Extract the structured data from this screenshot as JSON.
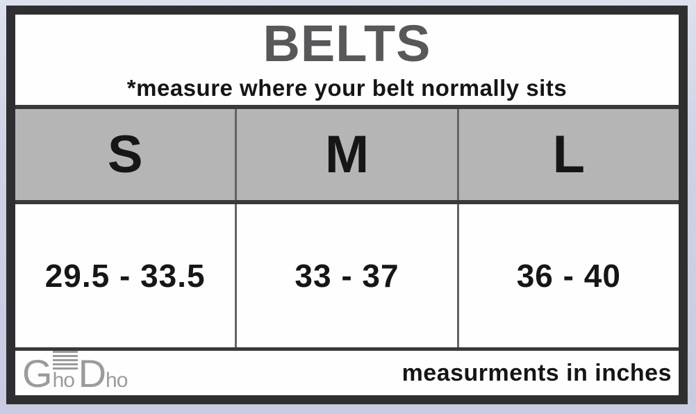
{
  "colors": {
    "canvas_background": "#cdd2e4",
    "frame_border": "#2f2f31",
    "row_divider": "#39393b",
    "column_divider": "#646467",
    "header_row_background": "#b5b5b5",
    "title_text": "#58585a",
    "body_text": "#161616",
    "logo_gray": "#9b9b9b",
    "cell_background": "#fefefe"
  },
  "size_chart": {
    "title": "BELTS",
    "subtitle": "*measure where your belt normally sits",
    "columns": [
      {
        "size": "S",
        "range": "29.5 - 33.5"
      },
      {
        "size": "M",
        "range": "33 - 37"
      },
      {
        "size": "L",
        "range": "36 - 40"
      }
    ],
    "footer": {
      "brand": "GhoDho",
      "brand_parts": {
        "g": "G",
        "ho1": "ho",
        "d": "D",
        "ho2": "ho"
      },
      "note": "measurments in inches"
    }
  },
  "chart_data": {
    "type": "table",
    "title": "BELTS",
    "subtitle": "*measure where your belt normally sits",
    "columns": [
      "S",
      "M",
      "L"
    ],
    "rows": [
      [
        "29.5 - 33.5",
        "33 - 37",
        "36 - 40"
      ]
    ],
    "units": "inches",
    "footnote": "measurments in inches",
    "brand": "GhoDho"
  }
}
